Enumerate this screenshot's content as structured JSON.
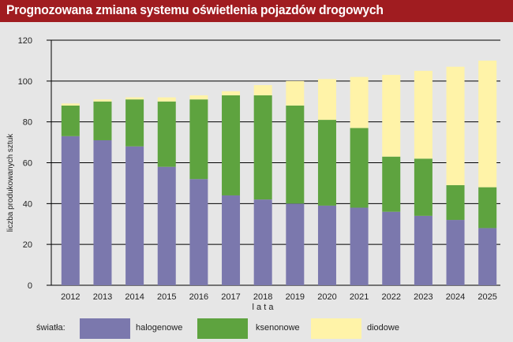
{
  "title": "Prognozowana zmiana systemu oświetlenia pojazdów drogowych",
  "legend": {
    "prefix": "światła:",
    "items": [
      {
        "label": "halogenowe",
        "color": "#7b78ad"
      },
      {
        "label": "ksenonowe",
        "color": "#5ea33f"
      },
      {
        "label": "diodowe",
        "color": "#fff3a8"
      }
    ]
  },
  "chart_data": {
    "type": "bar",
    "stacked": true,
    "xlabel": "l a t a",
    "ylabel": "liczba produkowanych sztuk",
    "ylim": [
      0,
      120
    ],
    "yticks": [
      0,
      20,
      40,
      60,
      80,
      100,
      120
    ],
    "grid": true,
    "categories": [
      "2012",
      "2013",
      "2014",
      "2015",
      "2016",
      "2017",
      "2018",
      "2019",
      "2020",
      "2021",
      "2022",
      "2023",
      "2024",
      "2025"
    ],
    "series": [
      {
        "name": "halogenowe",
        "color": "#7b78ad",
        "values": [
          73,
          71,
          68,
          58,
          52,
          44,
          42,
          40,
          39,
          38,
          36,
          34,
          32,
          28
        ]
      },
      {
        "name": "ksenonowe",
        "color": "#5ea33f",
        "values": [
          15,
          19,
          23,
          32,
          39,
          49,
          51,
          48,
          42,
          39,
          27,
          28,
          17,
          20
        ]
      },
      {
        "name": "diodowe",
        "color": "#fff3a8",
        "values": [
          1,
          1,
          1,
          2,
          2,
          2,
          5,
          12,
          20,
          25,
          40,
          43,
          58,
          62
        ]
      }
    ]
  }
}
